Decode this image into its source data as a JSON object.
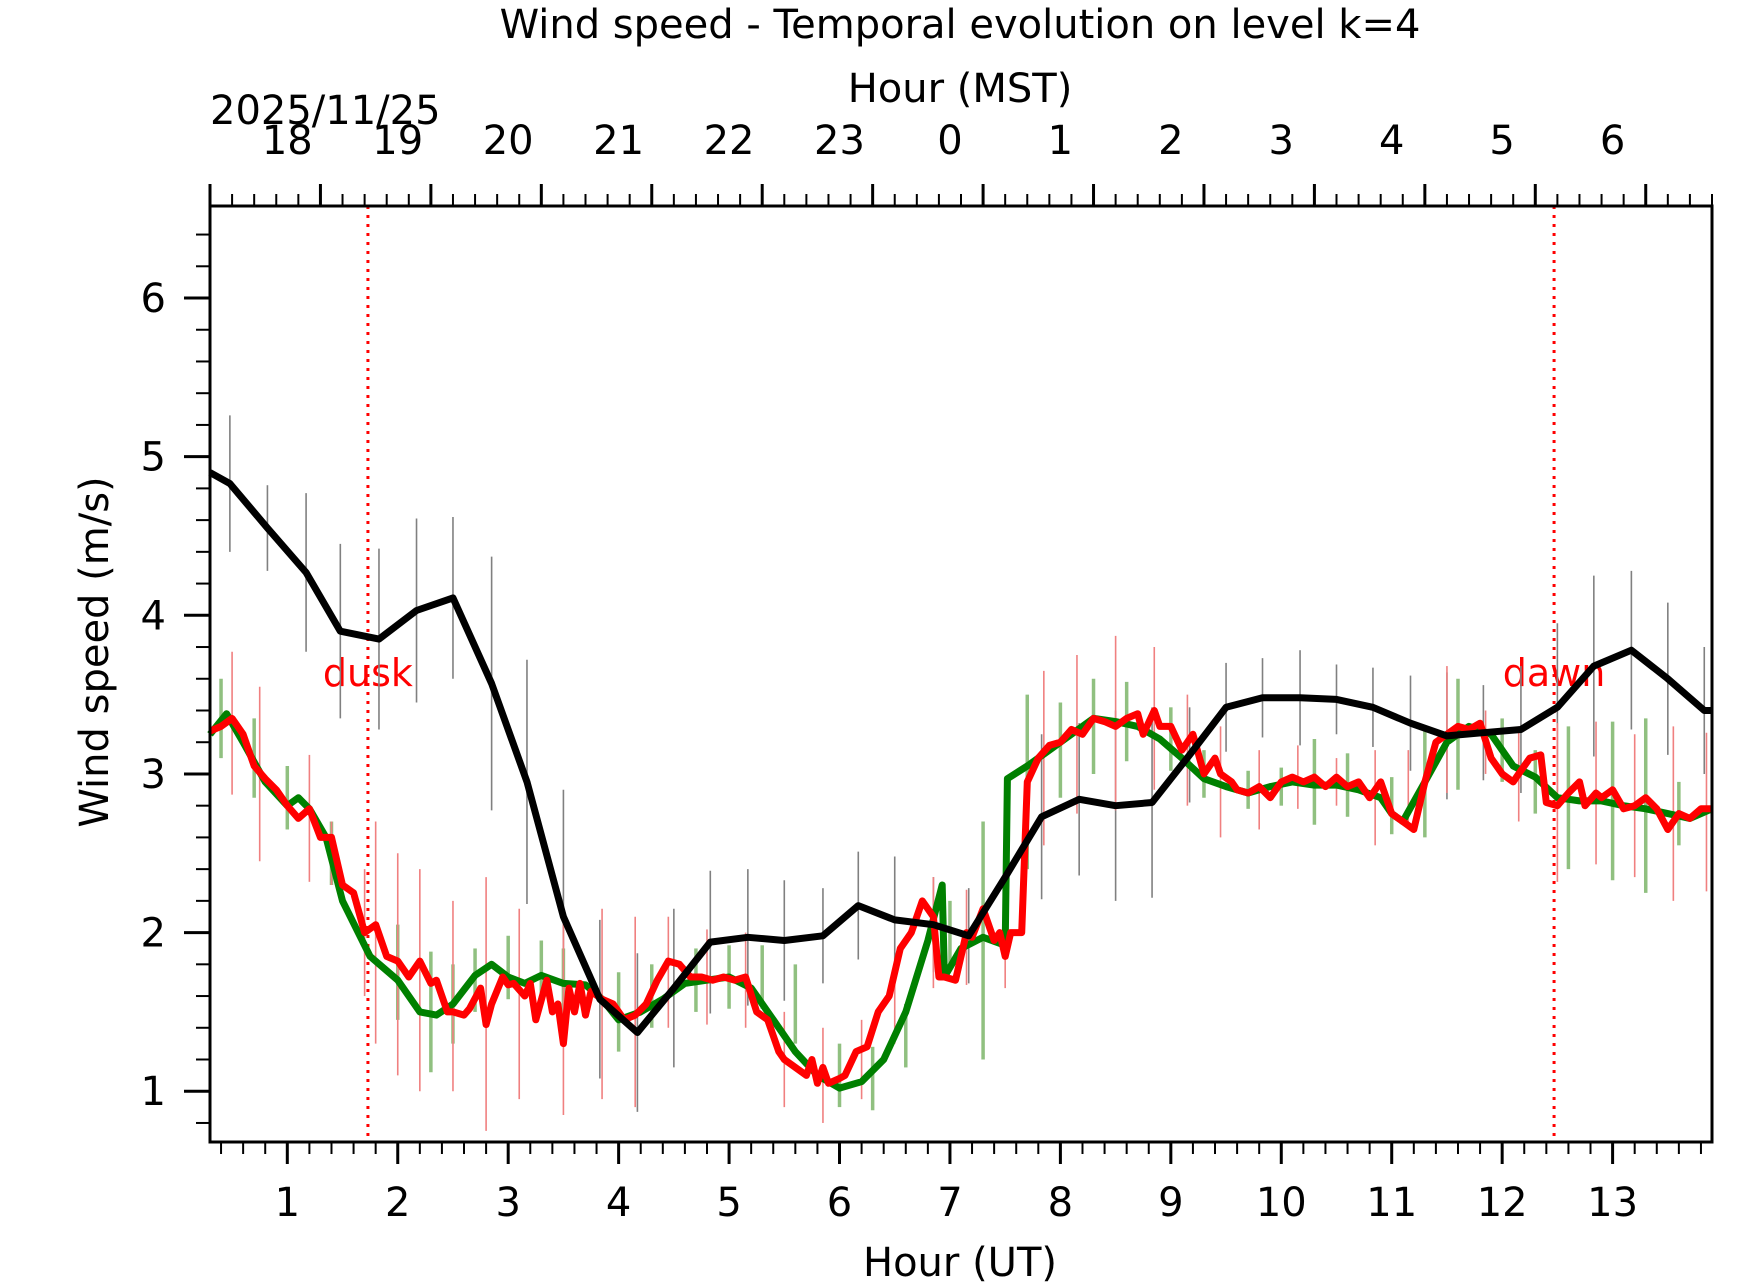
{
  "chart_data": {
    "type": "line",
    "title": "Wind speed - Temporal evolution on level k=4",
    "xlabel": "Hour (UT)",
    "ylabel": "Wind speed (m/s)",
    "top_xlabel": "Hour (MST)",
    "date_label": "2025/11/25",
    "xlim": [
      0.3,
      13.9
    ],
    "ylim": [
      0.68,
      6.58
    ],
    "grid": false,
    "x_ticks": [
      1,
      2,
      3,
      4,
      5,
      6,
      7,
      8,
      9,
      10,
      11,
      12,
      13
    ],
    "x_tick_labels": [
      "1",
      "2",
      "3",
      "4",
      "5",
      "6",
      "7",
      "8",
      "9",
      "10",
      "11",
      "12",
      "13"
    ],
    "y_ticks": [
      1,
      2,
      3,
      4,
      5,
      6
    ],
    "y_tick_labels": [
      "1",
      "2",
      "3",
      "4",
      "5",
      "6"
    ],
    "top_ticks": [
      0.3,
      1.3,
      2.3,
      3.3,
      4.3,
      5.3,
      6.3,
      7.3,
      8.3,
      9.3,
      10.3,
      11.3,
      12.3,
      13.3
    ],
    "top_tick_labels": [
      "18",
      "19",
      "20",
      "21",
      "22",
      "23",
      "0",
      "1",
      "2",
      "3",
      "4",
      "5",
      "6"
    ],
    "top_tick_labels_x": [
      1,
      2,
      3,
      4,
      5,
      6,
      7,
      8,
      9,
      10,
      11,
      12,
      13
    ],
    "markers": [
      {
        "x": 1.73,
        "label": "dusk",
        "color": "#ff0000"
      },
      {
        "x": 12.47,
        "label": "dawn",
        "color": "#ff0000"
      }
    ],
    "series": [
      {
        "name": "black",
        "color": "#000000",
        "errcolor": "#808080",
        "x": [
          0.3,
          0.48,
          0.82,
          1.17,
          1.48,
          1.83,
          2.17,
          2.5,
          2.85,
          3.17,
          3.5,
          3.83,
          4.17,
          4.5,
          4.83,
          5.17,
          5.5,
          5.85,
          6.17,
          6.5,
          6.85,
          7.17,
          7.5,
          7.83,
          8.17,
          8.5,
          8.83,
          9.17,
          9.5,
          9.83,
          10.17,
          10.5,
          10.83,
          11.17,
          11.5,
          11.83,
          12.17,
          12.5,
          12.83,
          13.17,
          13.5,
          13.83,
          13.9
        ],
        "y": [
          4.9,
          4.83,
          4.55,
          4.27,
          3.9,
          3.85,
          4.03,
          4.11,
          3.57,
          2.95,
          2.1,
          1.58,
          1.37,
          1.65,
          1.94,
          1.97,
          1.95,
          1.98,
          2.17,
          2.08,
          2.05,
          1.98,
          2.35,
          2.73,
          2.84,
          2.8,
          2.82,
          3.12,
          3.42,
          3.48,
          3.48,
          3.47,
          3.42,
          3.32,
          3.24,
          3.26,
          3.28,
          3.42,
          3.68,
          3.78,
          3.6,
          3.4,
          3.4
        ],
        "err": [
          0.35,
          0.43,
          0.27,
          0.5,
          0.55,
          0.57,
          0.58,
          0.51,
          0.8,
          0.77,
          0.8,
          0.5,
          0.5,
          0.5,
          0.45,
          0.43,
          0.38,
          0.3,
          0.34,
          0.4,
          0.3,
          0.3,
          0.36,
          0.52,
          0.48,
          0.6,
          0.6,
          0.3,
          0.28,
          0.25,
          0.3,
          0.22,
          0.25,
          0.3,
          0.4,
          0.3,
          0.4,
          0.53,
          0.57,
          0.5,
          0.48,
          0.4,
          0.4
        ]
      },
      {
        "name": "green",
        "color": "#008000",
        "errcolor": "#90c080",
        "x": [
          0.3,
          0.45,
          0.6,
          0.8,
          1.0,
          1.1,
          1.2,
          1.35,
          1.5,
          1.75,
          2.0,
          2.2,
          2.35,
          2.5,
          2.7,
          2.85,
          3.0,
          3.15,
          3.3,
          3.5,
          3.7,
          3.85,
          4.0,
          4.2,
          4.4,
          4.6,
          4.8,
          5.0,
          5.2,
          5.4,
          5.6,
          5.8,
          6.0,
          6.2,
          6.4,
          6.6,
          6.8,
          6.93,
          6.95,
          7.1,
          7.3,
          7.5,
          7.52,
          7.7,
          7.9,
          8.1,
          8.3,
          8.5,
          8.7,
          8.9,
          9.1,
          9.3,
          9.5,
          9.7,
          9.9,
          10.1,
          10.3,
          10.5,
          10.7,
          10.9,
          11.0,
          11.1,
          11.3,
          11.5,
          11.7,
          11.9,
          12.1,
          12.3,
          12.5,
          12.7,
          12.9,
          13.1,
          13.3,
          13.5,
          13.7,
          13.9
        ],
        "y": [
          3.25,
          3.38,
          3.2,
          2.95,
          2.8,
          2.85,
          2.78,
          2.6,
          2.2,
          1.85,
          1.7,
          1.5,
          1.48,
          1.55,
          1.73,
          1.8,
          1.72,
          1.68,
          1.73,
          1.68,
          1.67,
          1.58,
          1.45,
          1.5,
          1.58,
          1.68,
          1.7,
          1.72,
          1.65,
          1.45,
          1.25,
          1.1,
          1.02,
          1.06,
          1.2,
          1.5,
          1.95,
          2.3,
          1.72,
          1.9,
          1.97,
          1.92,
          2.97,
          3.05,
          3.15,
          3.25,
          3.35,
          3.33,
          3.3,
          3.22,
          3.1,
          2.97,
          2.92,
          2.88,
          2.92,
          2.95,
          2.93,
          2.93,
          2.9,
          2.85,
          2.75,
          2.7,
          2.95,
          3.2,
          3.3,
          3.25,
          3.05,
          2.98,
          2.85,
          2.83,
          2.83,
          2.8,
          2.78,
          2.75,
          2.72,
          2.78
        ],
        "errx": [
          0.4,
          0.7,
          1.0,
          1.4,
          2.0,
          2.3,
          2.5,
          2.7,
          3.0,
          3.3,
          3.5,
          4.0,
          4.3,
          4.7,
          5.0,
          5.3,
          5.6,
          6.0,
          6.3,
          6.6,
          7.0,
          7.3,
          7.7,
          8.0,
          8.3,
          8.6,
          9.0,
          9.3,
          9.7,
          10.0,
          10.3,
          10.6,
          11.0,
          11.3,
          11.6,
          12.0,
          12.3,
          12.6,
          13.0,
          13.3,
          13.6
        ],
        "erry": [
          3.35,
          3.1,
          2.85,
          2.5,
          1.75,
          1.5,
          1.55,
          1.7,
          1.78,
          1.75,
          1.7,
          1.5,
          1.6,
          1.7,
          1.72,
          1.72,
          1.55,
          1.1,
          1.08,
          1.35,
          2.0,
          1.95,
          2.95,
          3.15,
          3.3,
          3.33,
          3.22,
          3.0,
          2.9,
          2.92,
          2.95,
          2.93,
          2.8,
          2.95,
          3.25,
          3.15,
          2.95,
          2.85,
          2.83,
          2.8,
          2.75
        ],
        "errs": [
          0.25,
          0.25,
          0.2,
          0.2,
          0.3,
          0.38,
          0.25,
          0.2,
          0.2,
          0.2,
          0.2,
          0.25,
          0.2,
          0.2,
          0.2,
          0.2,
          0.25,
          0.2,
          0.2,
          0.2,
          0.2,
          0.75,
          0.55,
          0.3,
          0.3,
          0.25,
          0.2,
          0.15,
          0.12,
          0.12,
          0.27,
          0.2,
          0.18,
          0.35,
          0.35,
          0.2,
          0.2,
          0.45,
          0.5,
          0.55,
          0.2
        ]
      },
      {
        "name": "red",
        "color": "#ff0000",
        "errcolor": "#f08080",
        "x": [
          0.3,
          0.4,
          0.5,
          0.6,
          0.7,
          0.8,
          0.9,
          1.0,
          1.1,
          1.2,
          1.3,
          1.4,
          1.5,
          1.6,
          1.7,
          1.8,
          1.9,
          2.0,
          2.1,
          2.2,
          2.3,
          2.35,
          2.45,
          2.5,
          2.6,
          2.65,
          2.75,
          2.8,
          2.85,
          2.95,
          3.0,
          3.05,
          3.15,
          3.2,
          3.25,
          3.35,
          3.4,
          3.45,
          3.5,
          3.55,
          3.6,
          3.65,
          3.7,
          3.75,
          3.85,
          3.95,
          4.05,
          4.15,
          4.25,
          4.35,
          4.45,
          4.55,
          4.65,
          4.75,
          4.85,
          4.95,
          5.05,
          5.15,
          5.25,
          5.35,
          5.45,
          5.5,
          5.6,
          5.7,
          5.75,
          5.8,
          5.85,
          5.9,
          6.0,
          6.05,
          6.15,
          6.25,
          6.35,
          6.45,
          6.55,
          6.65,
          6.75,
          6.85,
          6.9,
          6.95,
          7.05,
          7.15,
          7.2,
          7.3,
          7.4,
          7.45,
          7.5,
          7.55,
          7.65,
          7.7,
          7.8,
          7.9,
          8.0,
          8.1,
          8.2,
          8.3,
          8.4,
          8.5,
          8.6,
          8.7,
          8.75,
          8.85,
          8.9,
          9.0,
          9.1,
          9.2,
          9.3,
          9.4,
          9.45,
          9.55,
          9.6,
          9.7,
          9.8,
          9.9,
          10.0,
          10.1,
          10.2,
          10.3,
          10.4,
          10.5,
          10.6,
          10.7,
          10.8,
          10.9,
          11.0,
          11.1,
          11.2,
          11.3,
          11.4,
          11.5,
          11.6,
          11.7,
          11.8,
          11.9,
          12.0,
          12.1,
          12.15,
          12.25,
          12.35,
          12.4,
          12.5,
          12.6,
          12.7,
          12.75,
          12.85,
          12.9,
          13.0,
          13.1,
          13.2,
          13.3,
          13.4,
          13.5,
          13.6,
          13.7,
          13.8,
          13.9
        ],
        "y": [
          3.27,
          3.3,
          3.35,
          3.25,
          3.05,
          2.97,
          2.9,
          2.8,
          2.72,
          2.78,
          2.6,
          2.6,
          2.3,
          2.25,
          2.0,
          2.05,
          1.85,
          1.82,
          1.72,
          1.82,
          1.68,
          1.7,
          1.5,
          1.5,
          1.48,
          1.52,
          1.65,
          1.42,
          1.55,
          1.72,
          1.67,
          1.68,
          1.6,
          1.68,
          1.45,
          1.7,
          1.5,
          1.55,
          1.3,
          1.65,
          1.5,
          1.68,
          1.48,
          1.63,
          1.58,
          1.55,
          1.45,
          1.48,
          1.55,
          1.7,
          1.82,
          1.8,
          1.72,
          1.72,
          1.7,
          1.72,
          1.7,
          1.72,
          1.5,
          1.45,
          1.25,
          1.2,
          1.15,
          1.1,
          1.2,
          1.05,
          1.15,
          1.05,
          1.08,
          1.1,
          1.25,
          1.28,
          1.5,
          1.6,
          1.9,
          2.0,
          2.2,
          2.1,
          1.72,
          1.72,
          1.7,
          2.0,
          1.97,
          2.15,
          1.95,
          2.0,
          1.85,
          2.0,
          2.0,
          2.95,
          3.1,
          3.18,
          3.2,
          3.28,
          3.25,
          3.35,
          3.33,
          3.3,
          3.35,
          3.38,
          3.25,
          3.4,
          3.3,
          3.3,
          3.15,
          3.25,
          3.0,
          3.1,
          3.0,
          2.95,
          2.9,
          2.88,
          2.92,
          2.85,
          2.95,
          2.98,
          2.95,
          2.98,
          2.92,
          2.98,
          2.92,
          2.95,
          2.85,
          2.95,
          2.75,
          2.7,
          2.65,
          2.95,
          3.2,
          3.25,
          3.3,
          3.28,
          3.32,
          3.1,
          3.0,
          2.95,
          3.0,
          3.1,
          3.12,
          2.82,
          2.8,
          2.88,
          2.95,
          2.8,
          2.88,
          2.85,
          2.9,
          2.78,
          2.8,
          2.85,
          2.78,
          2.65,
          2.75,
          2.72,
          2.78,
          2.78
        ],
        "errx": [
          0.3,
          0.5,
          0.75,
          1.2,
          1.4,
          1.7,
          1.8,
          2.0,
          2.2,
          2.5,
          2.8,
          3.1,
          3.5,
          3.85,
          4.15,
          4.45,
          4.8,
          5.15,
          5.5,
          5.85,
          6.2,
          6.5,
          6.85,
          7.15,
          7.5,
          7.85,
          8.15,
          8.5,
          8.85,
          9.15,
          9.45,
          9.8,
          10.15,
          10.5,
          10.85,
          11.15,
          11.5,
          11.85,
          12.15,
          12.5,
          12.85,
          13.2,
          13.55,
          13.85
        ],
        "erry": [
          3.25,
          3.32,
          3.0,
          2.72,
          2.5,
          2.0,
          2.0,
          1.8,
          1.7,
          1.6,
          1.55,
          1.55,
          1.5,
          1.55,
          1.5,
          1.75,
          1.72,
          1.7,
          1.2,
          1.1,
          1.2,
          1.55,
          2.0,
          1.97,
          2.0,
          3.1,
          3.25,
          3.32,
          3.35,
          3.15,
          2.95,
          2.9,
          2.98,
          2.95,
          2.85,
          2.9,
          3.28,
          3.2,
          3.0,
          2.82,
          2.88,
          2.8,
          2.75,
          2.76
        ],
        "errs": [
          0.5,
          0.45,
          0.55,
          0.4,
          0.2,
          0.4,
          0.7,
          0.7,
          0.7,
          0.6,
          0.8,
          0.6,
          0.65,
          0.6,
          0.6,
          0.35,
          0.3,
          0.3,
          0.3,
          0.3,
          0.25,
          0.25,
          0.35,
          0.3,
          0.35,
          0.55,
          0.5,
          0.55,
          0.45,
          0.35,
          0.35,
          0.25,
          0.2,
          0.15,
          0.3,
          0.25,
          0.4,
          0.2,
          0.3,
          0.5,
          0.45,
          0.45,
          0.55,
          0.5
        ]
      }
    ]
  }
}
